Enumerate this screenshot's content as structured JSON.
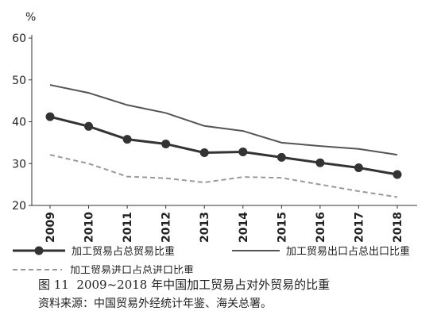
{
  "chart_data": {
    "type": "line",
    "unit_label": "%",
    "ylim": [
      20,
      60
    ],
    "yticks": [
      20,
      30,
      40,
      50,
      60
    ],
    "categories": [
      "2009",
      "2010",
      "2011",
      "2012",
      "2013",
      "2014",
      "2015",
      "2016",
      "2017",
      "2018"
    ],
    "grid": false,
    "legend_position": "bottom",
    "series": [
      {
        "name": "加工贸易占总贸易比重",
        "style": "line-markers",
        "color": "#333333",
        "values": [
          41.2,
          38.9,
          35.8,
          34.7,
          32.6,
          32.8,
          31.5,
          30.2,
          29.0,
          27.4
        ]
      },
      {
        "name": "加工贸易出口占总出口比重",
        "style": "line",
        "color": "#555555",
        "values": [
          48.8,
          46.9,
          44.0,
          42.1,
          39.0,
          37.8,
          35.0,
          34.2,
          33.5,
          32.1
        ]
      },
      {
        "name": "加工贸易进口占总进口比重",
        "style": "dashed",
        "color": "#999999",
        "values": [
          32.1,
          30.0,
          26.9,
          26.5,
          25.5,
          26.8,
          26.6,
          25.0,
          23.4,
          22.0
        ]
      }
    ]
  },
  "caption": {
    "figure": "图 11",
    "title": "2009~2018 年中国加工贸易占对外贸易的比重"
  },
  "source": "资料来源：中国贸易外经统计年鉴、海关总署。"
}
